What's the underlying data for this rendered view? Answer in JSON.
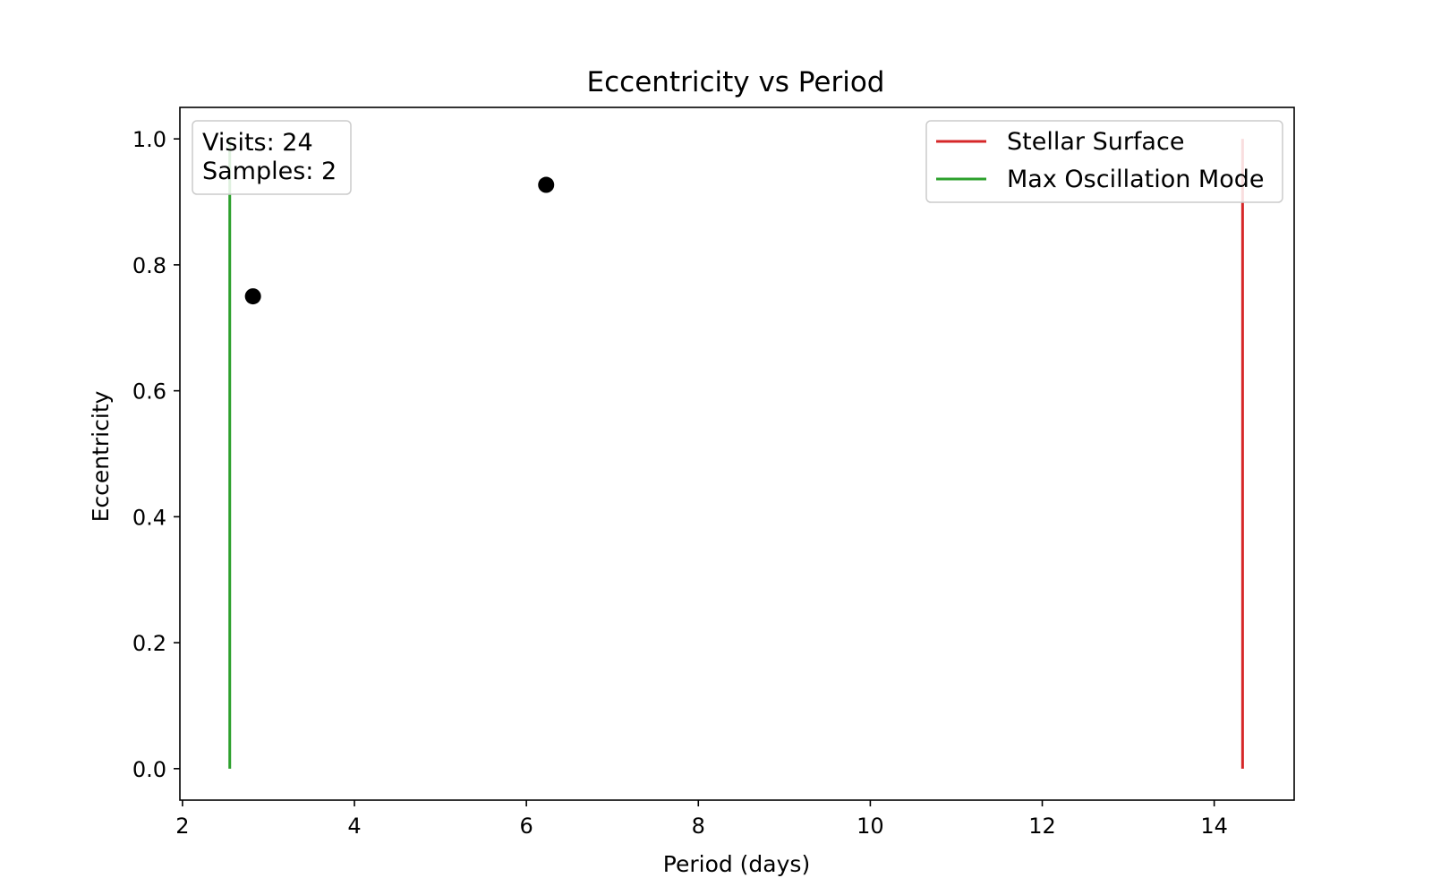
{
  "chart_data": {
    "type": "scatter",
    "title": "Eccentricity vs Period",
    "xlabel": "Period (days)",
    "ylabel": "Eccentricity",
    "xlim": [
      1.97,
      14.93
    ],
    "ylim": [
      -0.05,
      1.05
    ],
    "xticks": [
      2,
      4,
      6,
      8,
      10,
      12,
      14
    ],
    "xtick_labels": [
      "2",
      "4",
      "6",
      "8",
      "10",
      "12",
      "14"
    ],
    "yticks": [
      0.0,
      0.2,
      0.4,
      0.6,
      0.8,
      1.0
    ],
    "ytick_labels": [
      "0.0",
      "0.2",
      "0.4",
      "0.6",
      "0.8",
      "1.0"
    ],
    "grid": false,
    "points": [
      {
        "x": 2.82,
        "y": 0.75
      },
      {
        "x": 6.23,
        "y": 0.927
      }
    ],
    "point_color": "#000000",
    "vlines": [
      {
        "name": "Max Oscillation Mode",
        "x": 2.55,
        "ymin": 0.0,
        "ymax": 1.0,
        "color": "#2ca02c"
      },
      {
        "name": "Stellar Surface",
        "x": 14.33,
        "ymin": 0.0,
        "ymax": 1.0,
        "color": "#d62728"
      }
    ],
    "legend": {
      "placement": "top-right",
      "entries": [
        {
          "label": "Stellar Surface",
          "color": "#d62728"
        },
        {
          "label": "Max Oscillation Mode",
          "color": "#2ca02c"
        }
      ]
    },
    "info_box": {
      "placement": "top-left",
      "lines": [
        "Visits: 24",
        "Samples: 2"
      ]
    }
  }
}
